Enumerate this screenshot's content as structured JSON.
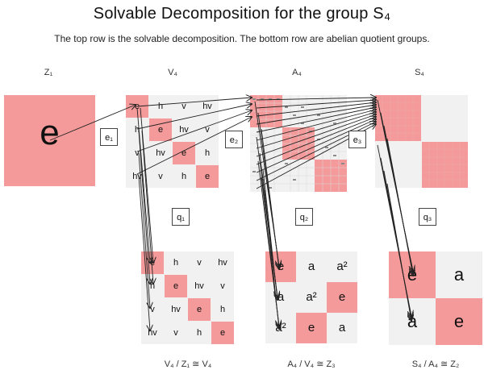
{
  "title": "Solvable Decomposition for the group S₄",
  "subtitle": "The top row is the solvable decomposition. The bottom row are abelian quotient groups.",
  "top_groups": [
    "Z₁",
    "V₄",
    "A₄",
    "S₄"
  ],
  "embed_boxes": [
    "e₁",
    "e₂",
    "e₃"
  ],
  "quotient_boxes": [
    "q₁",
    "q₂",
    "q₃"
  ],
  "quotient_labels": [
    "V₄ / Z₁ ≅ V₄",
    "A₄ / V₄ ≅ Z₃",
    "S₄ / A₄ ≅ Z₂"
  ],
  "z1_table": [
    [
      "e"
    ]
  ],
  "v4_table": [
    [
      "e",
      "h",
      "v",
      "hv"
    ],
    [
      "h",
      "e",
      "hv",
      "v"
    ],
    [
      "v",
      "hv",
      "e",
      "h"
    ],
    [
      "hv",
      "v",
      "h",
      "e"
    ]
  ],
  "z3_table": [
    [
      "e",
      "a",
      "a²"
    ],
    [
      "a",
      "a²",
      "e"
    ],
    [
      "a²",
      "e",
      "a"
    ]
  ],
  "z2_table": [
    [
      "e",
      "a"
    ],
    [
      "a",
      "e"
    ]
  ],
  "colors": {
    "highlight": "#f59a9a",
    "table_bg": "#f1f1f1",
    "arrow": "#222222"
  }
}
